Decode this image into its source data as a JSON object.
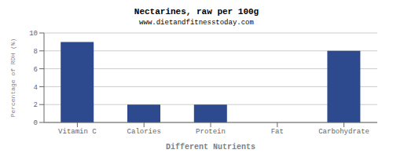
{
  "chart_data": {
    "type": "bar",
    "title": "Nectarines, raw per 100g",
    "subtitle": "www.dietandfitnesstoday.com",
    "xlabel": "Different Nutrients",
    "ylabel": "Percentage of RDH (%)",
    "categories": [
      "Vitamin C",
      "Calories",
      "Protein",
      "Fat",
      "Carbohydrate"
    ],
    "values": [
      9,
      2,
      2,
      0,
      8
    ],
    "color": "#2e4a8e",
    "ylim": [
      0,
      10
    ],
    "yticks": [
      0,
      2,
      4,
      6,
      8,
      10
    ],
    "grid": true
  }
}
